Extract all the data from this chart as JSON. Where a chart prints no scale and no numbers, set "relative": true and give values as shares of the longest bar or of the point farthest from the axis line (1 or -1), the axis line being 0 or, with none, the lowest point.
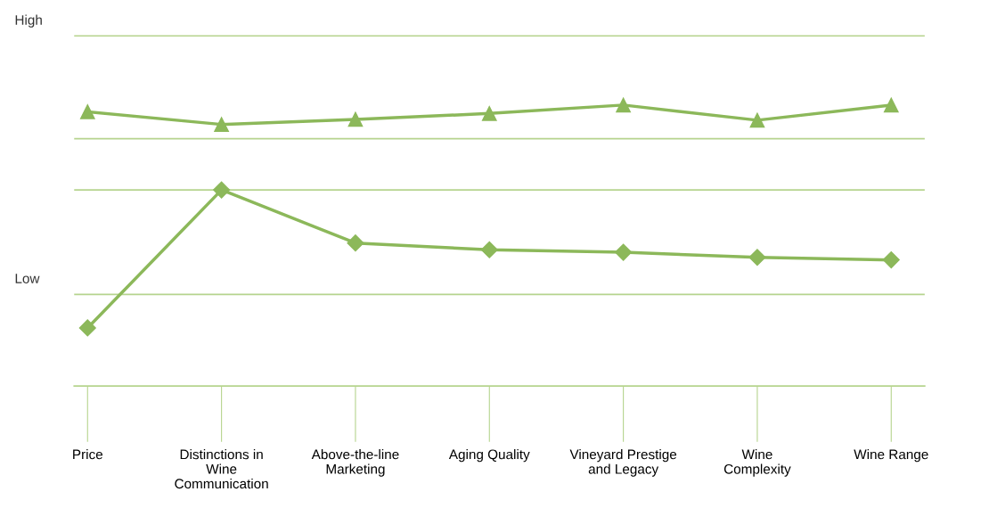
{
  "chart_data": {
    "type": "line",
    "relative": true,
    "categories": [
      "Price",
      "Distinctions in\nWine\nCommunication",
      "Above-the-line\nMarketing",
      "Aging Quality",
      "Vineyard Prestige\nand Legacy",
      "Wine\nComplexity",
      "Wine Range"
    ],
    "series": [
      {
        "color": "#8cb85a",
        "marker": "triangle",
        "values": [
          0.976,
          0.931,
          0.949,
          0.97,
          1.0,
          0.946,
          1.0
        ]
      },
      {
        "color": "#8cb85a",
        "marker": "diamond",
        "values": [
          0.207,
          0.698,
          0.509,
          0.485,
          0.476,
          0.458,
          0.449
        ]
      }
    ],
    "ref_lines": [
      {
        "axis": "y",
        "value": 1.246,
        "label": "High",
        "color": "#b6d48e"
      },
      {
        "axis": "y",
        "value": 0.88,
        "color": "#b6d48e"
      },
      {
        "axis": "y",
        "value": 0.698,
        "color": "#b6d48e"
      },
      {
        "axis": "y",
        "value": 0.326,
        "label": "Low",
        "color": "#b6d48e"
      }
    ],
    "grid": false,
    "legend": false,
    "line_style": "solid"
  }
}
